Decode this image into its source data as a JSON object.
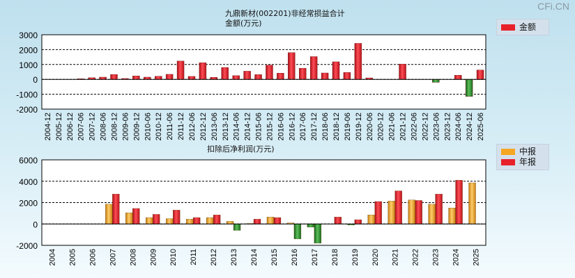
{
  "watermark": "CFi.CN",
  "colors": {
    "red": "#e8202a",
    "orange": "#f5a623",
    "green": "#2e8b2e"
  },
  "chart_data": [
    {
      "type": "bar",
      "title": "九鼎新材(002201)非经常损益合计",
      "subtitle": "金额(万元)",
      "legend": [
        {
          "name": "金额",
          "color": "#e8202a"
        }
      ],
      "ylim": [
        -2000,
        3000
      ],
      "yticks": [
        -2000,
        -1000,
        0,
        1000,
        2000,
        3000
      ],
      "categories": [
        "2004-12",
        "2005-12",
        "2006-12",
        "2007-06",
        "2007-12",
        "2008-06",
        "2008-12",
        "2009-06",
        "2009-12",
        "2010-06",
        "2010-12",
        "2011-06",
        "2011-12",
        "2012-06",
        "2012-12",
        "2013-06",
        "2013-12",
        "2014-06",
        "2014-12",
        "2015-06",
        "2015-12",
        "2016-06",
        "2016-12",
        "2017-06",
        "2017-12",
        "2018-06",
        "2018-12",
        "2019-06",
        "2019-12",
        "2020-06",
        "2020-12",
        "2021-06",
        "2021-12",
        "2022-06",
        "2022-12",
        "2023-06",
        "2023-12",
        "2024-06",
        "2024-12",
        "2025-06"
      ],
      "values": [
        0,
        0,
        0,
        40,
        110,
        150,
        330,
        60,
        230,
        150,
        210,
        340,
        1230,
        200,
        1120,
        140,
        800,
        250,
        550,
        320,
        960,
        420,
        1800,
        750,
        1530,
        430,
        1180,
        470,
        2420,
        100,
        0,
        0,
        1030,
        0,
        0,
        -200,
        0,
        280,
        -1150,
        630
      ]
    },
    {
      "type": "bar",
      "title": "扣除后净利润(万元)",
      "legend": [
        {
          "name": "中报",
          "color": "#f5a623"
        },
        {
          "name": "年报",
          "color": "#e8202a"
        }
      ],
      "ylim": [
        -2000,
        6000
      ],
      "yticks": [
        -2000,
        0,
        2000,
        4000,
        6000
      ],
      "categories": [
        "2004",
        "2005",
        "2006",
        "2007",
        "2008",
        "2009",
        "2010",
        "2011",
        "2012",
        "2013",
        "2014",
        "2015",
        "2016",
        "2017",
        "2018",
        "2019",
        "2020",
        "2021",
        "2022",
        "2023",
        "2024",
        "2025"
      ],
      "series": [
        {
          "name": "中报",
          "values": [
            null,
            null,
            null,
            1850,
            1050,
            600,
            500,
            450,
            600,
            250,
            50,
            650,
            100,
            -300,
            0,
            -100,
            850,
            2150,
            2250,
            1850,
            1500,
            3850
          ]
        },
        {
          "name": "年报",
          "values": [
            null,
            null,
            null,
            2800,
            1450,
            900,
            1300,
            600,
            850,
            -600,
            450,
            600,
            -1400,
            -1800,
            650,
            400,
            2100,
            3100,
            2200,
            2800,
            4100,
            null
          ]
        }
      ]
    }
  ]
}
